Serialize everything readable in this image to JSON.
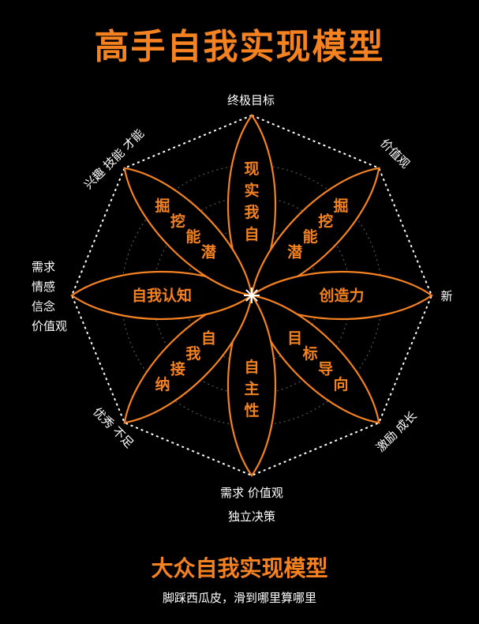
{
  "title": "高手自我实现模型",
  "subtitle": "大众自我实现模型",
  "caption": "脚踩西瓜皮，滑到哪里算哪里",
  "colors": {
    "accent": "#f58220",
    "background": "#000000",
    "text": "#ffffff",
    "grid": "#555555"
  },
  "petals": [
    "自我实现",
    "潜能挖掘",
    "创造力",
    "目标导向",
    "自主性",
    "自我接纳",
    "自我认知",
    "潜能挖掘"
  ],
  "vertex_labels": {
    "top": "终极目标",
    "top_right": "价值观",
    "right": "新",
    "bottom_right": "激励 成长",
    "bottom": [
      "需求 价值观",
      "独立决策"
    ],
    "bottom_left": "优秀 不足",
    "left": [
      "需求",
      "情感",
      "信念",
      "价值观"
    ],
    "top_left": "兴趣 技能 才能"
  }
}
